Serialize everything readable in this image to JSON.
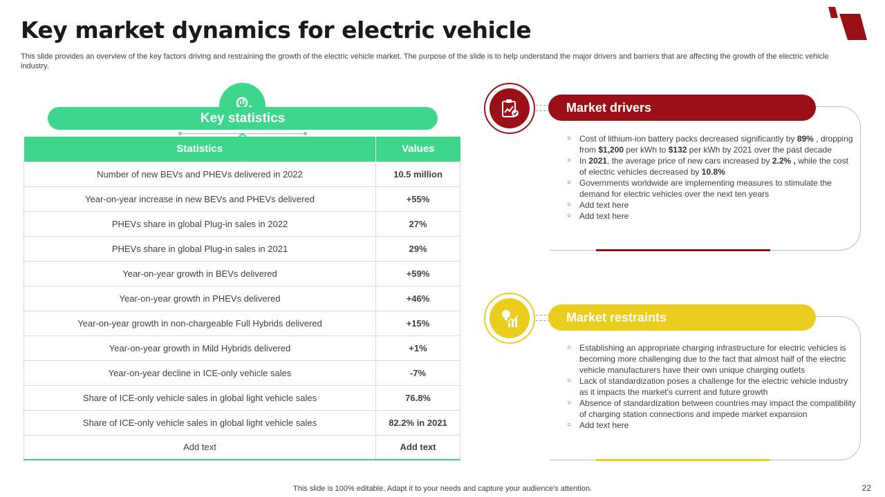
{
  "title": "Key market dynamics for electric vehicle",
  "subtitle": "This slide provides an overview of the key factors driving and restraining the growth of the electric vehicle market. The purpose of the slide is to help understand the major drivers and barriers that are affecting the growth of the electric vehicle industry.",
  "colors": {
    "green": "#3dd68c",
    "red": "#9b1016",
    "yellow": "#ebcd1e"
  },
  "stats": {
    "heading": "Key statistics",
    "icon": "analytics-search-icon",
    "columns": [
      "Statistics",
      "Values"
    ],
    "rows": [
      [
        "Number of new BEVs and PHEVs delivered in 2022",
        "10.5 million"
      ],
      [
        "Year-on-year increase in new BEVs and PHEVs delivered",
        "+55%"
      ],
      [
        "PHEVs share in global Plug-in sales in 2022",
        "27%"
      ],
      [
        "PHEVs share in global Plug-in sales in 2021",
        "29%"
      ],
      [
        "Year-on-year growth in BEVs delivered",
        "+59%"
      ],
      [
        "Year-on-year growth in PHEVs delivered",
        "+46%"
      ],
      [
        "Year-on-year growth in non-chargeable Full Hybrids delivered",
        "+15%"
      ],
      [
        "Year-on-year growth in Mild Hybrids delivered",
        "+1%"
      ],
      [
        "Year-on-year decline in ICE-only vehicle sales",
        "-7%"
      ],
      [
        "Share of ICE-only vehicle sales in global light vehicle sales",
        "76.8%"
      ],
      [
        "Share of ICE-only vehicle sales in global light vehicle sales",
        "82.2% in 2021"
      ],
      [
        "Add text",
        "Add text"
      ]
    ]
  },
  "drivers": {
    "heading": "Market drivers",
    "icon": "clipboard-chart-icon",
    "bullets": [
      [
        "Cost of lithium-ion battery packs decreased significantly by ",
        "89%",
        " , dropping from ",
        "$1,200",
        " per kWh to ",
        "$132",
        " per kWh by 2021 over the past decade"
      ],
      [
        "In ",
        "2021",
        ", the average price of new cars increased by ",
        "2.2% ,",
        " while the cost of electric vehicles decreased by ",
        "10.8%",
        ""
      ],
      [
        "Governments worldwide are implementing measures to stimulate the demand for electric vehicles over the next ten years"
      ],
      [
        "Add text here"
      ],
      [
        "Add text here"
      ]
    ]
  },
  "restraints": {
    "heading": "Market restraints",
    "icon": "lightbulb-bar-chart-icon",
    "bullets": [
      [
        "Establishing an appropriate charging infrastructure for electric vehicles is becoming more challenging due to the fact that almost half of the electric vehicle manufacturers have their own unique charging outlets"
      ],
      [
        "Lack of standardization poses a challenge for the electric vehicle industry as it impacts the market's current and future growth"
      ],
      [
        "Absence of standardization between countries may impact the compatibility of charging station connections and impede market expansion"
      ],
      [
        "Add text here"
      ]
    ]
  },
  "footer": "This slide is 100% editable. Adapt it to your needs and capture your audience's attention.",
  "page_number": "22"
}
